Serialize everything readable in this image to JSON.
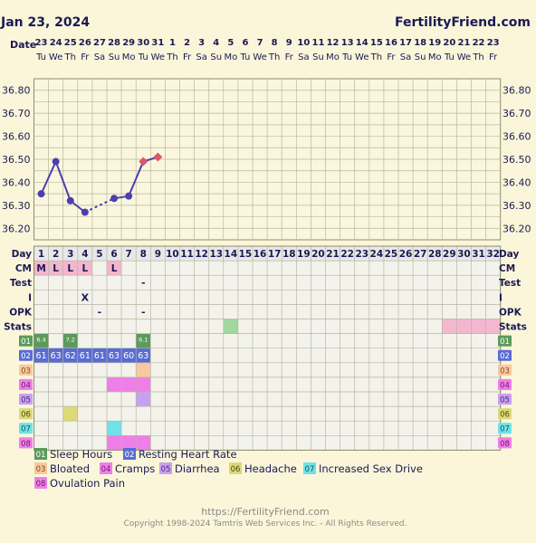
{
  "header": {
    "date": "Jan 23, 2024",
    "site": "FertilityFriend.com"
  },
  "date_label": "Date",
  "dates": [
    "23",
    "24",
    "25",
    "26",
    "27",
    "28",
    "29",
    "30",
    "31",
    "1",
    "2",
    "3",
    "4",
    "5",
    "6",
    "7",
    "8",
    "9",
    "10",
    "11",
    "12",
    "13",
    "14",
    "15",
    "16",
    "17",
    "18",
    "19",
    "20",
    "21",
    "22",
    "23"
  ],
  "weekdays": [
    "Tu",
    "We",
    "Th",
    "Fr",
    "Sa",
    "Su",
    "Mo",
    "Tu",
    "We",
    "Th",
    "Fr",
    "Sa",
    "Su",
    "Mo",
    "Tu",
    "We",
    "Th",
    "Fr",
    "Sa",
    "Su",
    "Mo",
    "Tu",
    "We",
    "Th",
    "Fr",
    "Sa",
    "Su",
    "Mo",
    "Tu",
    "We",
    "Th",
    "Fr"
  ],
  "chart_data": {
    "type": "line",
    "title": "",
    "xlabel": "Day",
    "ylabel": "",
    "ylim": [
      36.15,
      36.85
    ],
    "yticks": [
      "36.80",
      "36.70",
      "36.60",
      "36.50",
      "36.40",
      "36.30",
      "36.20"
    ],
    "x": [
      1,
      2,
      3,
      4,
      5,
      6,
      7,
      8,
      9
    ],
    "series": [
      {
        "values": [
          36.35,
          36.49,
          36.32,
          36.27,
          null,
          36.33,
          36.34,
          36.49,
          36.51
        ],
        "marker_types": [
          "dot",
          "dot",
          "dot",
          "dot",
          null,
          "dot",
          "dot",
          "diamond",
          "diamond"
        ],
        "segment_styles": [
          "solid",
          "solid",
          "solid",
          "dashed",
          "dashed",
          "solid",
          "solid",
          "solid"
        ]
      }
    ],
    "grid": true,
    "colors": {
      "line": "#4b3fae",
      "diamond": "#d9596b"
    }
  },
  "days": [
    "1",
    "2",
    "3",
    "4",
    "5",
    "6",
    "7",
    "8",
    "9",
    "10",
    "11",
    "12",
    "13",
    "14",
    "15",
    "16",
    "17",
    "18",
    "19",
    "20",
    "21",
    "22",
    "23",
    "24",
    "25",
    "26",
    "27",
    "28",
    "29",
    "30",
    "31",
    "32"
  ],
  "row_labels": {
    "day": "Day",
    "cm": "CM",
    "test": "Test",
    "i": "I",
    "opk": "OPK",
    "stats": "Stats"
  },
  "cm_values": [
    "M",
    "L",
    "L",
    "L",
    "",
    "L"
  ],
  "test_marks": [
    {
      "day": 8,
      "text": "-"
    }
  ],
  "i_marks": [
    {
      "day": 4,
      "text": "X"
    }
  ],
  "opk_marks": [
    {
      "day": 5,
      "text": "-"
    },
    {
      "day": 8,
      "text": "-"
    }
  ],
  "stats_green_days": [
    14
  ],
  "stats_pink_days": [
    29,
    30,
    31,
    32
  ],
  "sleep_values": [
    {
      "day": 1,
      "text": "6.4"
    },
    {
      "day": 3,
      "text": "7.2"
    },
    {
      "day": 8,
      "text": "6.1"
    }
  ],
  "rhr_values": [
    "61",
    "63",
    "62",
    "61",
    "61",
    "63",
    "60",
    "63"
  ],
  "code_rows": [
    {
      "code": "01",
      "color": "#5c9a5c",
      "text_color": "#ffffff"
    },
    {
      "code": "02",
      "color": "#5a6bd3",
      "text_color": "#ffffff"
    },
    {
      "code": "03",
      "color": "#f7c9a0",
      "text_color": "#8a4b16"
    },
    {
      "code": "04",
      "color": "#f07ee8",
      "text_color": "#6a1a66"
    },
    {
      "code": "05",
      "color": "#c99ff2",
      "text_color": "#4a2a74"
    },
    {
      "code": "06",
      "color": "#dcd97a",
      "text_color": "#4d4a10"
    },
    {
      "code": "07",
      "color": "#6fe2e8",
      "text_color": "#14585c"
    },
    {
      "code": "08",
      "color": "#f07ee8",
      "text_color": "#6a1a66"
    }
  ],
  "symptom_cells": [
    {
      "row": 3,
      "days": [
        8
      ]
    },
    {
      "row": 4,
      "days": [
        6,
        7,
        8
      ]
    },
    {
      "row": 5,
      "days": [
        8
      ]
    },
    {
      "row": 6,
      "days": [
        3
      ]
    },
    {
      "row": 7,
      "days": [
        6
      ]
    },
    {
      "row": 8,
      "days": [
        6,
        7,
        8
      ]
    }
  ],
  "legend": [
    {
      "code": "01",
      "label": "Sleep Hours"
    },
    {
      "code": "02",
      "label": "Resting Heart Rate"
    },
    {
      "code": "03",
      "label": "Bloated"
    },
    {
      "code": "04",
      "label": "Cramps"
    },
    {
      "code": "05",
      "label": "Diarrhea"
    },
    {
      "code": "06",
      "label": "Headache"
    },
    {
      "code": "07",
      "label": "Increased Sex Drive"
    },
    {
      "code": "08",
      "label": "Ovulation Pain"
    }
  ],
  "footer": {
    "url": "https://FertilityFriend.com",
    "copyright": "Copyright 1998-2024 Tamtris Web Services Inc. - All Rights Reserved."
  }
}
